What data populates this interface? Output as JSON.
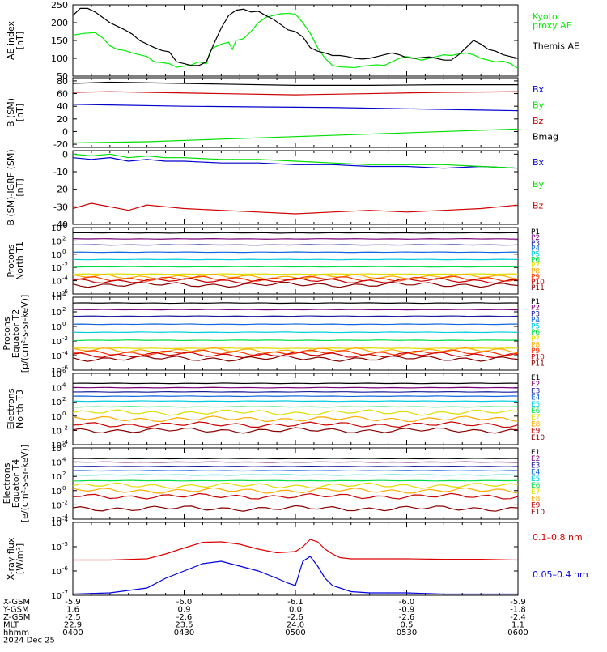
{
  "chart_data": [
    {
      "type": "line",
      "ylabel": "AE index\n[nT]",
      "ylim": [
        50,
        250
      ],
      "yticks": [
        "250",
        "200",
        "150",
        "100",
        "50"
      ],
      "series": [
        {
          "name": "Kyoto proxy AE",
          "color": "#00ee00",
          "x": [
            0,
            3,
            6,
            8,
            10,
            12,
            14,
            16,
            18,
            20,
            22,
            24,
            26,
            27,
            28,
            30,
            32,
            34,
            36,
            37,
            38,
            40,
            42,
            43,
            44,
            46,
            48,
            50,
            52,
            54,
            56,
            58,
            60,
            62,
            64,
            66,
            68,
            70,
            72,
            74,
            76,
            78,
            80,
            82,
            84,
            86,
            88,
            90,
            92,
            94,
            96,
            98,
            100,
            102,
            104,
            106,
            108,
            110,
            112,
            114,
            116,
            118,
            120
          ],
          "y": [
            165,
            170,
            172,
            158,
            135,
            125,
            122,
            115,
            110,
            105,
            90,
            88,
            85,
            80,
            75,
            78,
            82,
            90,
            85,
            120,
            130,
            140,
            145,
            125,
            150,
            155,
            175,
            200,
            215,
            220,
            225,
            226,
            224,
            200,
            170,
            130,
            100,
            80,
            76,
            75,
            74,
            78,
            80,
            82,
            80,
            90,
            100,
            105,
            100,
            95,
            100,
            105,
            110,
            108,
            112,
            115,
            110,
            100,
            95,
            90,
            92,
            85,
            72
          ]
        },
        {
          "name": "Themis AE",
          "color": "#000000",
          "x": [
            0,
            2,
            4,
            6,
            8,
            10,
            12,
            14,
            16,
            18,
            20,
            22,
            24,
            26,
            28,
            30,
            32,
            34,
            36,
            38,
            40,
            42,
            44,
            46,
            48,
            50,
            52,
            54,
            56,
            58,
            60,
            62,
            64,
            66,
            68,
            70,
            72,
            74,
            76,
            78,
            80,
            82,
            84,
            86,
            88,
            90,
            92,
            94,
            96,
            98,
            100,
            102,
            104,
            106,
            108,
            110,
            112,
            114,
            116,
            118,
            120
          ],
          "y": [
            220,
            240,
            240,
            230,
            215,
            200,
            190,
            180,
            168,
            150,
            140,
            130,
            122,
            118,
            90,
            85,
            80,
            80,
            90,
            140,
            185,
            220,
            235,
            238,
            230,
            232,
            220,
            210,
            195,
            180,
            175,
            160,
            130,
            120,
            115,
            108,
            108,
            105,
            100,
            98,
            100,
            105,
            110,
            115,
            110,
            102,
            100,
            102,
            104,
            100,
            95,
            95,
            110,
            130,
            150,
            140,
            125,
            120,
            110,
            105,
            100
          ]
        }
      ],
      "legend": [
        "Kyoto\nproxy AE",
        "Themis AE"
      ]
    },
    {
      "type": "line",
      "ylabel": "B (SM)\n[nT]",
      "ylim": [
        -25,
        85
      ],
      "yticks": [
        "80",
        "60",
        "40",
        "20",
        "0",
        "-20"
      ],
      "series": [
        {
          "name": "Bx",
          "color": "#0000cc",
          "x": [
            0,
            10,
            30,
            50,
            70,
            90,
            110,
            120
          ],
          "y": [
            43,
            42,
            40,
            39,
            38,
            36,
            34,
            33
          ]
        },
        {
          "name": "By",
          "color": "#00dd00",
          "x": [
            0,
            20,
            40,
            60,
            80,
            100,
            120
          ],
          "y": [
            -18,
            -16,
            -12,
            -8,
            -4,
            0,
            4
          ]
        },
        {
          "name": "Bz",
          "color": "#cc0000",
          "x": [
            0,
            10,
            20,
            40,
            60,
            80,
            100,
            120
          ],
          "y": [
            62,
            63,
            62,
            60,
            58,
            60,
            62,
            63
          ]
        },
        {
          "name": "Bmag",
          "color": "#000000",
          "x": [
            0,
            10,
            20,
            40,
            60,
            80,
            100,
            120
          ],
          "y": [
            76,
            78,
            77,
            75,
            73,
            73,
            74,
            74
          ]
        }
      ],
      "legend": [
        "Bx",
        "By",
        "Bz",
        "Bmag"
      ]
    },
    {
      "type": "line",
      "ylabel": "B (SM)-IGRF (SM)\n[nT]",
      "ylim": [
        -40,
        2
      ],
      "yticks": [
        "0",
        "-10",
        "-20",
        "-30",
        "-40"
      ],
      "series": [
        {
          "name": "Bx",
          "color": "#0000cc",
          "x": [
            0,
            5,
            10,
            15,
            20,
            25,
            30,
            40,
            50,
            60,
            70,
            80,
            90,
            100,
            110,
            120
          ],
          "y": [
            -2,
            -3,
            -2,
            -4,
            -3,
            -4,
            -4,
            -5,
            -5,
            -6,
            -6,
            -7,
            -7,
            -8,
            -7,
            -8
          ]
        },
        {
          "name": "By",
          "color": "#00dd00",
          "x": [
            0,
            5,
            10,
            15,
            20,
            25,
            30,
            40,
            50,
            60,
            70,
            80,
            90,
            100,
            110,
            120
          ],
          "y": [
            0,
            -1,
            0,
            -2,
            -1,
            -2,
            -2,
            -3,
            -3,
            -4,
            -5,
            -6,
            -6,
            -6,
            -7,
            -8
          ]
        },
        {
          "name": "Bz",
          "color": "#cc0000",
          "x": [
            0,
            5,
            10,
            15,
            20,
            25,
            30,
            40,
            50,
            60,
            70,
            80,
            90,
            100,
            110,
            120
          ],
          "y": [
            -31,
            -28,
            -30,
            -32,
            -29,
            -30,
            -31,
            -32,
            -33,
            -34,
            -33,
            -32,
            -33,
            -32,
            -31,
            -29
          ]
        }
      ],
      "legend": [
        "Bx",
        "By",
        "Bz"
      ]
    },
    {
      "type": "line",
      "log": true,
      "ylabel": "Protons\nNorth T1",
      "ylim": [
        -6,
        4
      ],
      "yticks": [
        "10^4",
        "10^2",
        "10^0",
        "10^-2",
        "10^-4",
        "10^-6"
      ],
      "series": [
        {
          "name": "P1",
          "color": "#000000",
          "level": 3.2
        },
        {
          "name": "P2",
          "color": "#7a007a",
          "level": 2.3
        },
        {
          "name": "P3",
          "color": "#1a1a9a",
          "level": 1.4
        },
        {
          "name": "P4",
          "color": "#1166dd",
          "level": 0.3
        },
        {
          "name": "P5",
          "color": "#00ccdd",
          "level": -0.8
        },
        {
          "name": "P6",
          "color": "#00dd44",
          "level": -1.9
        },
        {
          "name": "P7",
          "color": "#dddd00",
          "level": -3.0
        },
        {
          "name": "P8",
          "color": "#ffaa00",
          "level": -3.4
        },
        {
          "name": "P9",
          "color": "#ff3300",
          "level": -3.7
        },
        {
          "name": "P10",
          "color": "#cc0000",
          "level": -4.0
        },
        {
          "name": "P11",
          "color": "#880000",
          "level": -4.6
        }
      ],
      "legend": [
        "P1",
        "P2",
        "P3",
        "P4",
        "P5",
        "P6",
        "P7",
        "P8",
        "P9",
        "P10",
        "P11"
      ]
    },
    {
      "type": "line",
      "log": true,
      "ylabel": "Protons\nEquator T2\n[p/(cm²-s-sr-keV)]",
      "ylim": [
        -6,
        4
      ],
      "yticks": [
        "10^4",
        "10^2",
        "10^0",
        "10^-2",
        "10^-4",
        "10^-6"
      ],
      "series": [
        {
          "name": "P1",
          "color": "#000000",
          "level": 3.2
        },
        {
          "name": "P2",
          "color": "#7a007a",
          "level": 2.3
        },
        {
          "name": "P3",
          "color": "#1a1a9a",
          "level": 1.4
        },
        {
          "name": "P4",
          "color": "#1166dd",
          "level": 0.3
        },
        {
          "name": "P5",
          "color": "#00ccdd",
          "level": -0.8
        },
        {
          "name": "P6",
          "color": "#00dd44",
          "level": -1.9
        },
        {
          "name": "P7",
          "color": "#dddd00",
          "level": -3.0
        },
        {
          "name": "P8",
          "color": "#ffaa00",
          "level": -3.3
        },
        {
          "name": "P9",
          "color": "#ff3300",
          "level": -3.6
        },
        {
          "name": "P10",
          "color": "#cc0000",
          "level": -3.9
        },
        {
          "name": "P11",
          "color": "#880000",
          "level": -4.4
        }
      ],
      "legend": [
        "P1",
        "P2",
        "P3",
        "P4",
        "P5",
        "P6",
        "P7",
        "P8",
        "P9",
        "P10",
        "P11"
      ]
    },
    {
      "type": "line",
      "log": true,
      "ylabel": "Electrons\nNorth T3",
      "ylim": [
        -4,
        6
      ],
      "yticks": [
        "10^6",
        "10^4",
        "10^2",
        "10^0",
        "10^-2",
        "10^-4"
      ],
      "series": [
        {
          "name": "E1",
          "color": "#000000",
          "level": 4.6
        },
        {
          "name": "E2",
          "color": "#7a007a",
          "level": 4.0
        },
        {
          "name": "E3",
          "color": "#1a1a9a",
          "level": 3.4
        },
        {
          "name": "E4",
          "color": "#1166dd",
          "level": 2.8
        },
        {
          "name": "E5",
          "color": "#00ccdd",
          "level": 2.1
        },
        {
          "name": "E6",
          "color": "#00dd44",
          "level": 1.3
        },
        {
          "name": "E7",
          "color": "#dddd00",
          "level": 0.5
        },
        {
          "name": "E8",
          "color": "#ffaa00",
          "level": -0.4
        },
        {
          "name": "E9",
          "color": "#cc0000",
          "level": -1.2
        },
        {
          "name": "E10",
          "color": "#880000",
          "level": -2.0
        }
      ],
      "legend": [
        "E1",
        "E2",
        "E3",
        "E4",
        "E5",
        "E6",
        "E7",
        "E8",
        "E9",
        "E10"
      ]
    },
    {
      "type": "line",
      "log": true,
      "ylabel": "Electrons\nEquator T4\n[e/(cm²-s-sr-keV)]",
      "ylim": [
        -4,
        6
      ],
      "yticks": [
        "10^6",
        "10^4",
        "10^2",
        "10^0",
        "10^-2",
        "10^-4"
      ],
      "series": [
        {
          "name": "E1",
          "color": "#000000",
          "level": 4.5
        },
        {
          "name": "E2",
          "color": "#7a007a",
          "level": 4.0
        },
        {
          "name": "E3",
          "color": "#1a1a9a",
          "level": 3.4
        },
        {
          "name": "E4",
          "color": "#1166dd",
          "level": 2.8
        },
        {
          "name": "E5",
          "color": "#00ccdd",
          "level": 2.2
        },
        {
          "name": "E6",
          "color": "#00dd44",
          "level": 1.4
        },
        {
          "name": "E7",
          "color": "#dddd00",
          "level": 0.7
        },
        {
          "name": "E8",
          "color": "#ffaa00",
          "level": 0.0
        },
        {
          "name": "E9",
          "color": "#cc0000",
          "level": -0.8
        },
        {
          "name": "E10",
          "color": "#880000",
          "level": -2.5
        }
      ],
      "legend": [
        "E1",
        "E2",
        "E3",
        "E4",
        "E5",
        "E6",
        "E7",
        "E8",
        "E9",
        "E10"
      ]
    },
    {
      "type": "line",
      "log": true,
      "ylabel": "X-ray flux\n[W/m²]",
      "ylim": [
        -7,
        -4
      ],
      "yticks": [
        "10^-4",
        "10^-5",
        "10^-6",
        "10^-7"
      ],
      "series": [
        {
          "name": "0.1-0.8 nm",
          "color": "#dd0000",
          "x": [
            0,
            10,
            20,
            25,
            30,
            35,
            40,
            45,
            50,
            55,
            60,
            62,
            64,
            66,
            68,
            70,
            72,
            75,
            80,
            90,
            100,
            110,
            120
          ],
          "y": [
            -5.55,
            -5.55,
            -5.5,
            -5.3,
            -5.05,
            -4.82,
            -4.8,
            -4.9,
            -5.1,
            -5.25,
            -5.2,
            -5.0,
            -4.7,
            -4.8,
            -5.1,
            -5.3,
            -5.45,
            -5.5,
            -5.5,
            -5.5,
            -5.52,
            -5.52,
            -5.55
          ]
        },
        {
          "name": "0.05-0.4 nm",
          "color": "#0000dd",
          "x": [
            0,
            10,
            20,
            25,
            30,
            35,
            40,
            45,
            50,
            55,
            58,
            60,
            62,
            64,
            66,
            68,
            70,
            75,
            80,
            90,
            100,
            110,
            120
          ],
          "y": [
            -6.95,
            -6.9,
            -6.7,
            -6.3,
            -6.0,
            -5.7,
            -5.6,
            -5.8,
            -6.0,
            -6.3,
            -6.5,
            -6.6,
            -5.6,
            -5.4,
            -5.8,
            -6.3,
            -6.6,
            -6.85,
            -6.9,
            -6.9,
            -6.95,
            -6.95,
            -6.95
          ]
        }
      ],
      "legend": [
        "0.1–0.8 nm",
        "0.05–0.4 nm"
      ]
    }
  ],
  "footer": {
    "rows": [
      {
        "label": "X-GSM",
        "values": [
          "-5.9",
          "-6.0",
          "-6.1",
          "-6.0",
          "-5.9"
        ]
      },
      {
        "label": "Y-GSM",
        "values": [
          "1.6",
          "0.9",
          "0.0",
          "-0.9",
          "-1.8"
        ]
      },
      {
        "label": "Z-GSM",
        "values": [
          "-2.5",
          "-2.6",
          "-2.6",
          "-2.6",
          "-2.4"
        ]
      },
      {
        "label": "MLT",
        "values": [
          "22.9",
          "23.5",
          "24.0",
          "0.5",
          "1.1"
        ]
      },
      {
        "label": "hhmm",
        "values": [
          "0400",
          "0430",
          "0500",
          "0530",
          "0600"
        ]
      }
    ],
    "date": "2024 Dec 25"
  },
  "xticks_count": 5
}
